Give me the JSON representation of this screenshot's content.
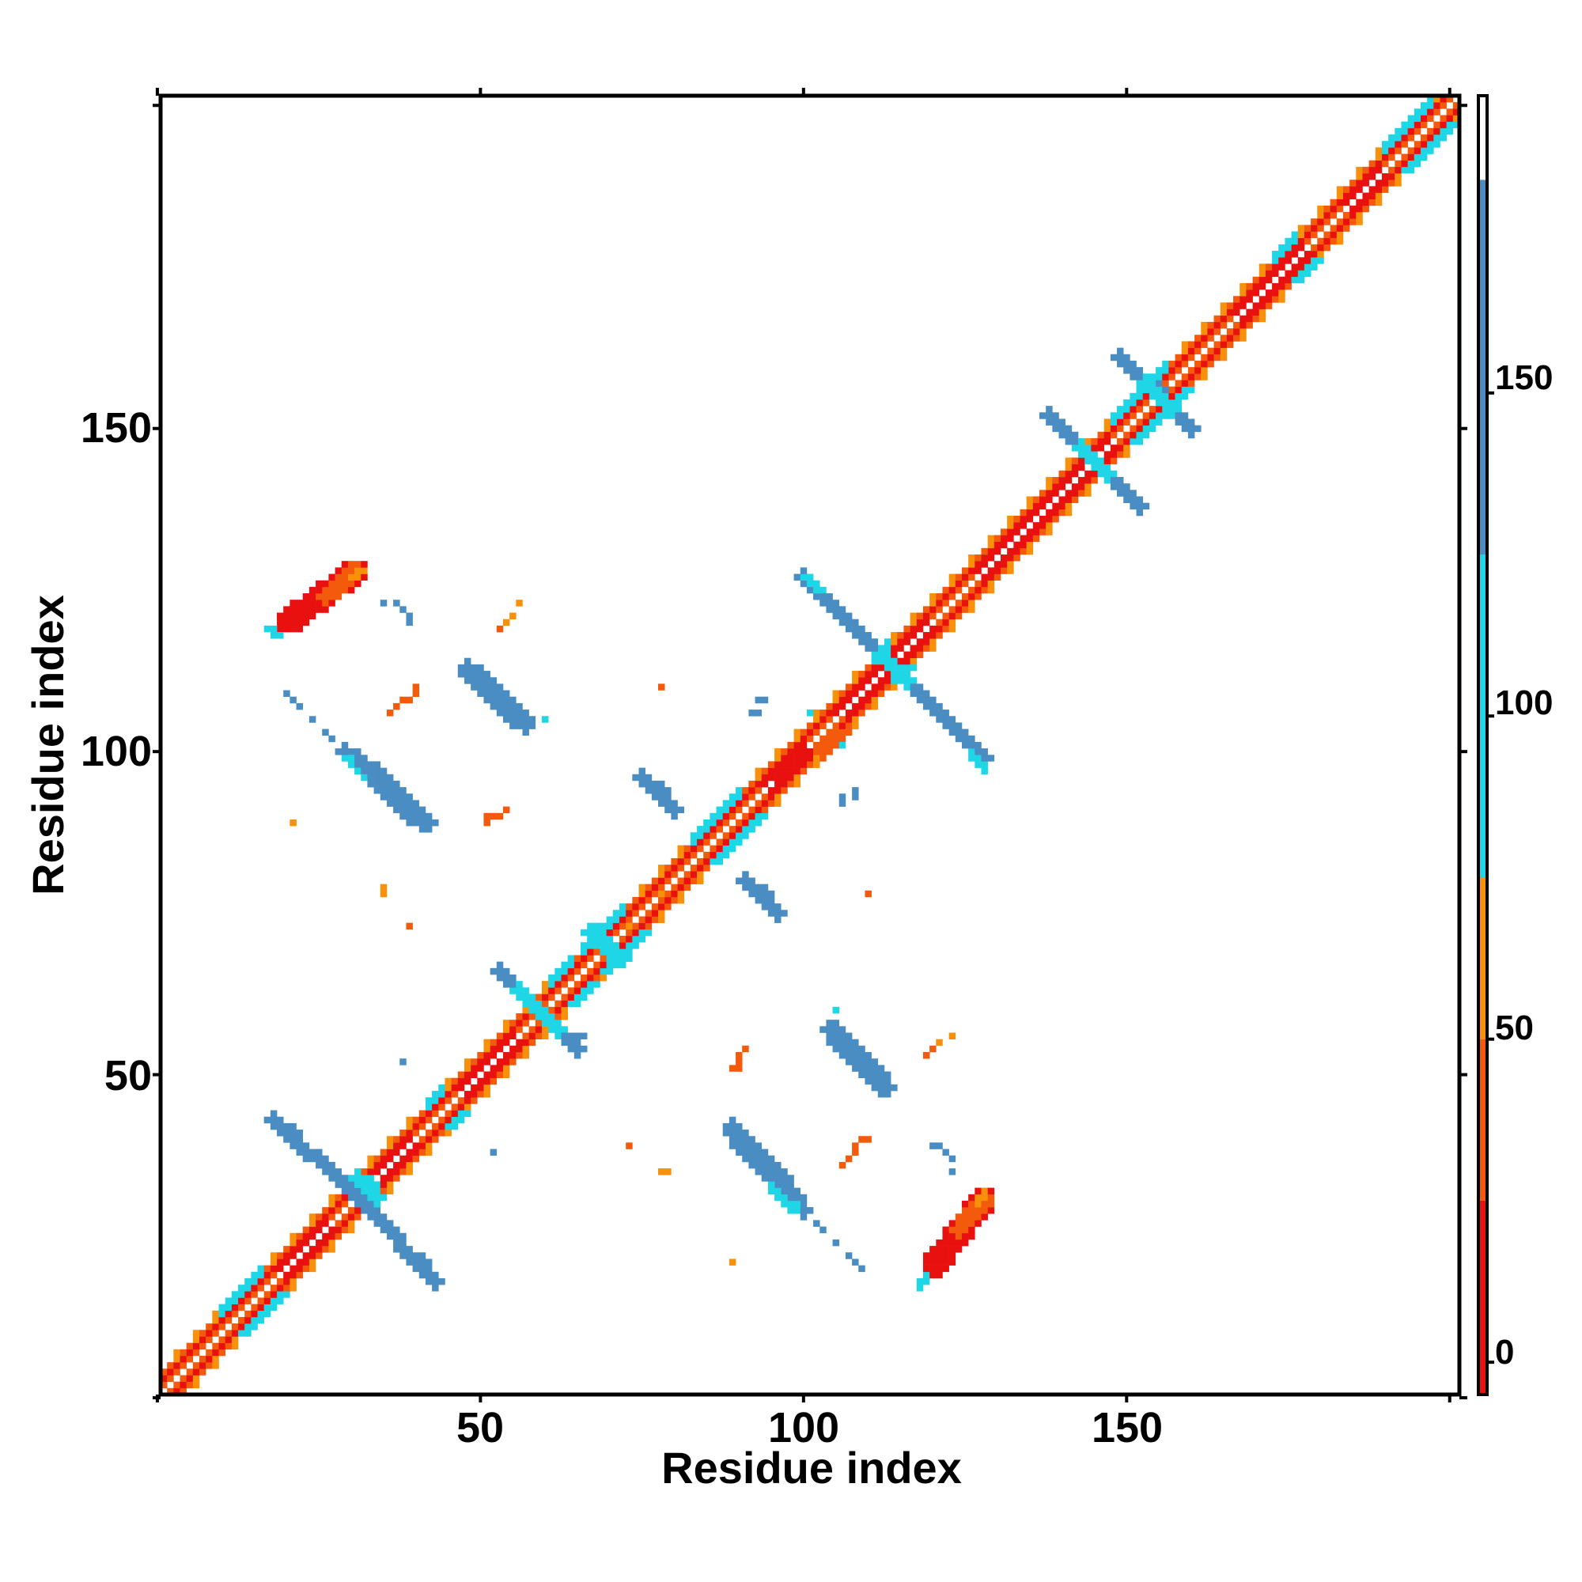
{
  "chart_data": {
    "type": "heatmap",
    "subtype": "residue contact map (symmetric)",
    "xlabel": "Residue index",
    "ylabel": "Residue index",
    "xlim": [
      0.5,
      201.5
    ],
    "ylim": [
      0.5,
      201.5
    ],
    "xticks": [
      50,
      100,
      150
    ],
    "yticks": [
      50,
      100,
      150
    ],
    "grid": false,
    "colorbar": {
      "position": "right",
      "range": [
        -5,
        196
      ],
      "ticks": [
        0,
        50,
        100,
        150
      ],
      "bands": [
        {
          "from": -5,
          "to": 25,
          "color": "#e8110f"
        },
        {
          "from": 25,
          "to": 50,
          "color": "#f35a0c"
        },
        {
          "from": 50,
          "to": 75,
          "color": "#f7900a"
        },
        {
          "from": 75,
          "to": 125,
          "color": "#1fd6e6"
        },
        {
          "from": 125,
          "to": 183,
          "color": "#4a8dc3"
        },
        {
          "from": 183,
          "to": 196,
          "color": "#ffffff"
        }
      ]
    },
    "colors": {
      "red": "#e8110f",
      "orange_red": "#f35a0c",
      "orange": "#f7900a",
      "cyan": "#1fd6e6",
      "steel_blue": "#4a8dc3"
    },
    "diagonal": {
      "from": 1,
      "to": 201,
      "pattern": "alternating red/orange/white/cyan bands along main diagonal (|i-j| <= 4)",
      "red_runs": [
        [
          20,
          27
        ],
        [
          34,
          40
        ],
        [
          48,
          56
        ],
        [
          95,
          101
        ],
        [
          106,
          120
        ],
        [
          128,
          148
        ],
        [
          168,
          178
        ],
        [
          185,
          190
        ]
      ],
      "cyan_runs": [
        [
          12,
          18
        ],
        [
          44,
          46
        ],
        [
          63,
          66
        ],
        [
          68,
          74
        ],
        [
          85,
          92
        ],
        [
          113,
          115
        ],
        [
          150,
          158
        ],
        [
          175,
          178
        ],
        [
          192,
          199
        ]
      ]
    },
    "segments": [
      {
        "x1": 20,
        "y1": 120,
        "x2": 31,
        "y2": 128,
        "w": 2.8,
        "c": "red"
      },
      {
        "x1": 26,
        "y1": 124,
        "x2": 31,
        "y2": 128,
        "w": 2.2,
        "c": "orange_red"
      },
      {
        "x1": 30,
        "y1": 127,
        "x2": 32,
        "y2": 128,
        "w": 1.5,
        "c": "orange"
      },
      {
        "x1": 17,
        "y1": 119,
        "x2": 19,
        "y2": 118,
        "w": 1.4,
        "c": "cyan"
      },
      {
        "x1": 120,
        "y1": 20,
        "x2": 128,
        "y2": 31,
        "w": 2.8,
        "c": "red"
      },
      {
        "x1": 124,
        "y1": 26,
        "x2": 128,
        "y2": 31,
        "w": 2.2,
        "c": "orange_red"
      },
      {
        "x1": 127,
        "y1": 30,
        "x2": 128,
        "y2": 32,
        "w": 1.5,
        "c": "orange"
      },
      {
        "x1": 118,
        "y1": 17,
        "x2": 119,
        "y2": 19,
        "w": 1.4,
        "c": "cyan"
      },
      {
        "x1": 29,
        "y1": 100,
        "x2": 41,
        "y2": 89,
        "w": 2.3,
        "c": "steel_blue"
      },
      {
        "x1": 29,
        "y1": 99,
        "x2": 33,
        "y2": 96,
        "w": 1.5,
        "c": "cyan"
      },
      {
        "x1": 100,
        "y1": 29,
        "x2": 89,
        "y2": 41,
        "w": 2.3,
        "c": "steel_blue"
      },
      {
        "x1": 99,
        "y1": 29,
        "x2": 96,
        "y2": 33,
        "w": 1.5,
        "c": "cyan"
      },
      {
        "x1": 48,
        "y1": 112,
        "x2": 57,
        "y2": 104,
        "w": 2.2,
        "c": "steel_blue"
      },
      {
        "x1": 48,
        "y1": 112,
        "x2": 51,
        "y2": 110,
        "w": 1.5,
        "c": "cyan"
      },
      {
        "x1": 112,
        "y1": 48,
        "x2": 104,
        "y2": 57,
        "w": 2.2,
        "c": "steel_blue"
      },
      {
        "x1": 110,
        "y1": 51,
        "x2": 112,
        "y2": 48,
        "w": 1.5,
        "c": "cyan"
      },
      {
        "x1": 18,
        "y1": 43,
        "x2": 23,
        "y2": 38,
        "w": 2.2,
        "c": "steel_blue"
      },
      {
        "x1": 43,
        "y1": 18,
        "x2": 38,
        "y2": 23,
        "w": 2.2,
        "c": "steel_blue"
      },
      {
        "x1": 25,
        "y1": 37,
        "x2": 33,
        "y2": 29,
        "w": 2.6,
        "c": "steel_blue"
      },
      {
        "x1": 37,
        "y1": 25,
        "x2": 29,
        "y2": 33,
        "w": 2.6,
        "c": "steel_blue"
      },
      {
        "x1": 31,
        "y1": 34,
        "x2": 34,
        "y2": 31,
        "w": 2.4,
        "c": "cyan"
      },
      {
        "x1": 53,
        "y1": 66,
        "x2": 65,
        "y2": 54,
        "w": 2.4,
        "c": "steel_blue"
      },
      {
        "x1": 56,
        "y1": 63,
        "x2": 62,
        "y2": 57,
        "w": 2.4,
        "c": "cyan"
      },
      {
        "x1": 100,
        "y1": 127,
        "x2": 128,
        "y2": 99,
        "w": 2.6,
        "c": "steel_blue"
      },
      {
        "x1": 112,
        "y1": 115,
        "x2": 116,
        "y2": 111,
        "w": 2.6,
        "c": "cyan"
      },
      {
        "x1": 100,
        "y1": 127,
        "x2": 103,
        "y2": 125,
        "w": 1.5,
        "c": "cyan"
      },
      {
        "x1": 126,
        "y1": 100,
        "x2": 128,
        "y2": 97,
        "w": 1.5,
        "c": "cyan"
      },
      {
        "x1": 138,
        "y1": 152,
        "x2": 152,
        "y2": 138,
        "w": 2.2,
        "c": "steel_blue"
      },
      {
        "x1": 143,
        "y1": 147,
        "x2": 147,
        "y2": 143,
        "w": 2.0,
        "c": "cyan"
      },
      {
        "x1": 149,
        "y1": 161,
        "x2": 160,
        "y2": 150,
        "w": 1.8,
        "c": "steel_blue"
      },
      {
        "x1": 153,
        "y1": 157,
        "x2": 157,
        "y2": 153,
        "w": 1.8,
        "c": "cyan"
      },
      {
        "x1": 75,
        "y1": 96,
        "x2": 80,
        "y2": 91,
        "w": 2.2,
        "c": "steel_blue"
      },
      {
        "x1": 96,
        "y1": 75,
        "x2": 91,
        "y2": 80,
        "w": 2.2,
        "c": "steel_blue"
      },
      {
        "x1": 89,
        "y1": 42,
        "x2": 98,
        "y2": 32,
        "w": 2.4,
        "c": "steel_blue"
      },
      {
        "x1": 42,
        "y1": 89,
        "x2": 32,
        "y2": 98,
        "w": 2.4,
        "c": "steel_blue"
      },
      {
        "x1": 105,
        "y1": 57,
        "x2": 113,
        "y2": 48,
        "w": 2.2,
        "c": "steel_blue"
      },
      {
        "x1": 57,
        "y1": 105,
        "x2": 48,
        "y2": 113,
        "w": 2.2,
        "c": "steel_blue"
      },
      {
        "x1": 95,
        "y1": 33,
        "x2": 98,
        "y2": 29,
        "w": 1.6,
        "c": "cyan"
      },
      {
        "x1": 103,
        "y1": 100,
        "x2": 106,
        "y2": 104,
        "w": 2.4,
        "c": "orange_red"
      },
      {
        "x1": 96,
        "y1": 97,
        "x2": 100,
        "y2": 100,
        "w": 2.0,
        "c": "red"
      },
      {
        "x1": 67,
        "y1": 72,
        "x2": 72,
        "y2": 68,
        "w": 1.8,
        "c": "cyan"
      },
      {
        "x1": 65,
        "y1": 56,
        "x2": 66,
        "y2": 56,
        "w": 1.0,
        "c": "steel_blue"
      }
    ],
    "points": [
      {
        "x": 35,
        "y": 123,
        "c": "steel_blue"
      },
      {
        "x": 37,
        "y": 123,
        "c": "steel_blue"
      },
      {
        "x": 38,
        "y": 122,
        "c": "steel_blue"
      },
      {
        "x": 39,
        "y": 121,
        "c": "steel_blue"
      },
      {
        "x": 39,
        "y": 120,
        "c": "steel_blue"
      },
      {
        "x": 123,
        "y": 35,
        "c": "steel_blue"
      },
      {
        "x": 123,
        "y": 37,
        "c": "steel_blue"
      },
      {
        "x": 122,
        "y": 38,
        "c": "steel_blue"
      },
      {
        "x": 121,
        "y": 39,
        "c": "steel_blue"
      },
      {
        "x": 120,
        "y": 39,
        "c": "steel_blue"
      },
      {
        "x": 20,
        "y": 109,
        "c": "steel_blue"
      },
      {
        "x": 21,
        "y": 108,
        "c": "steel_blue"
      },
      {
        "x": 22,
        "y": 107,
        "c": "steel_blue"
      },
      {
        "x": 24,
        "y": 105,
        "c": "steel_blue"
      },
      {
        "x": 26,
        "y": 103,
        "c": "steel_blue"
      },
      {
        "x": 27,
        "y": 102,
        "c": "steel_blue"
      },
      {
        "x": 109,
        "y": 20,
        "c": "steel_blue"
      },
      {
        "x": 108,
        "y": 21,
        "c": "steel_blue"
      },
      {
        "x": 107,
        "y": 22,
        "c": "steel_blue"
      },
      {
        "x": 105,
        "y": 24,
        "c": "steel_blue"
      },
      {
        "x": 103,
        "y": 26,
        "c": "steel_blue"
      },
      {
        "x": 102,
        "y": 27,
        "c": "steel_blue"
      },
      {
        "x": 37,
        "y": 107,
        "c": "orange_red"
      },
      {
        "x": 38,
        "y": 108,
        "c": "orange_red"
      },
      {
        "x": 39,
        "y": 108,
        "c": "orange_red"
      },
      {
        "x": 40,
        "y": 109,
        "c": "orange_red"
      },
      {
        "x": 36,
        "y": 106,
        "c": "orange_red"
      },
      {
        "x": 107,
        "y": 37,
        "c": "orange_red"
      },
      {
        "x": 108,
        "y": 38,
        "c": "orange_red"
      },
      {
        "x": 108,
        "y": 39,
        "c": "orange_red"
      },
      {
        "x": 109,
        "y": 40,
        "c": "orange_red"
      },
      {
        "x": 106,
        "y": 36,
        "c": "orange_red"
      },
      {
        "x": 53,
        "y": 119,
        "c": "orange_red"
      },
      {
        "x": 54,
        "y": 120,
        "c": "orange"
      },
      {
        "x": 55,
        "y": 121,
        "c": "orange"
      },
      {
        "x": 56,
        "y": 123,
        "c": "orange"
      },
      {
        "x": 119,
        "y": 53,
        "c": "orange_red"
      },
      {
        "x": 120,
        "y": 54,
        "c": "orange"
      },
      {
        "x": 121,
        "y": 55,
        "c": "orange"
      },
      {
        "x": 123,
        "y": 56,
        "c": "orange"
      },
      {
        "x": 51,
        "y": 90,
        "c": "orange_red"
      },
      {
        "x": 52,
        "y": 90,
        "c": "orange_red"
      },
      {
        "x": 53,
        "y": 90,
        "c": "orange_red"
      },
      {
        "x": 54,
        "y": 91,
        "c": "orange_red"
      },
      {
        "x": 90,
        "y": 51,
        "c": "orange_red"
      },
      {
        "x": 90,
        "y": 52,
        "c": "orange_red"
      },
      {
        "x": 90,
        "y": 53,
        "c": "orange_red"
      },
      {
        "x": 91,
        "y": 54,
        "c": "orange_red"
      },
      {
        "x": 21,
        "y": 89,
        "c": "orange"
      },
      {
        "x": 89,
        "y": 21,
        "c": "orange"
      },
      {
        "x": 35,
        "y": 79,
        "c": "orange"
      },
      {
        "x": 35,
        "y": 78,
        "c": "orange"
      },
      {
        "x": 78,
        "y": 35,
        "c": "orange"
      },
      {
        "x": 79,
        "y": 35,
        "c": "orange"
      },
      {
        "x": 60,
        "y": 105,
        "c": "cyan"
      },
      {
        "x": 105,
        "y": 60,
        "c": "cyan"
      },
      {
        "x": 92,
        "y": 106,
        "c": "steel_blue"
      },
      {
        "x": 93,
        "y": 106,
        "c": "steel_blue"
      },
      {
        "x": 106,
        "y": 92,
        "c": "steel_blue"
      },
      {
        "x": 106,
        "y": 93,
        "c": "steel_blue"
      },
      {
        "x": 108,
        "y": 93,
        "c": "steel_blue"
      },
      {
        "x": 108,
        "y": 94,
        "c": "steel_blue"
      },
      {
        "x": 93,
        "y": 108,
        "c": "steel_blue"
      },
      {
        "x": 94,
        "y": 108,
        "c": "steel_blue"
      },
      {
        "x": 38,
        "y": 52,
        "c": "steel_blue"
      },
      {
        "x": 52,
        "y": 38,
        "c": "steel_blue"
      },
      {
        "x": 106,
        "y": 101,
        "c": "cyan"
      },
      {
        "x": 101,
        "y": 106,
        "c": "cyan"
      },
      {
        "x": 95,
        "y": 36,
        "c": "steel_blue"
      },
      {
        "x": 36,
        "y": 95,
        "c": "steel_blue"
      },
      {
        "x": 89,
        "y": 51,
        "c": "orange_red"
      },
      {
        "x": 51,
        "y": 89,
        "c": "orange_red"
      },
      {
        "x": 90,
        "y": 51,
        "c": "orange_red"
      },
      {
        "x": 106,
        "y": 104,
        "c": "red"
      },
      {
        "x": 104,
        "y": 106,
        "c": "red"
      },
      {
        "x": 110,
        "y": 40,
        "c": "orange_red"
      },
      {
        "x": 40,
        "y": 110,
        "c": "orange_red"
      },
      {
        "x": 119,
        "y": 53,
        "c": "orange_red"
      },
      {
        "x": 120,
        "y": 54,
        "c": "orange_red"
      },
      {
        "x": 73,
        "y": 39,
        "c": "orange_red"
      },
      {
        "x": 39,
        "y": 73,
        "c": "orange_red"
      },
      {
        "x": 78,
        "y": 110,
        "c": "orange_red"
      },
      {
        "x": 110,
        "y": 78,
        "c": "orange_red"
      },
      {
        "x": 73,
        "y": 73,
        "c": "orange"
      },
      {
        "x": 78,
        "y": 78,
        "c": "orange"
      }
    ]
  }
}
